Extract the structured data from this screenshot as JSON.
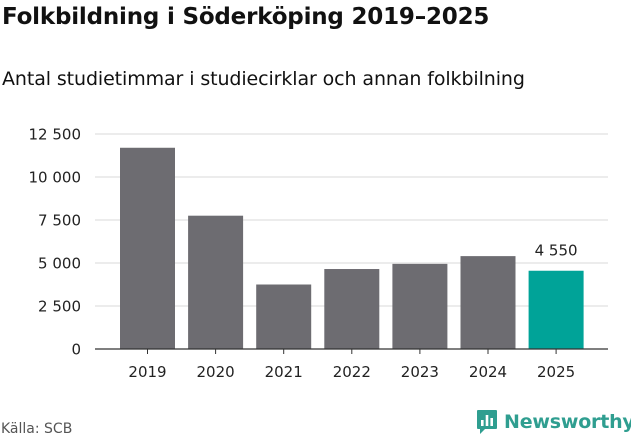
{
  "header": {
    "title": "Folkbildning i Söderköping 2019–2025",
    "subtitle": "Antal studietimmar i studiecirklar och annan folkbilning"
  },
  "footer": {
    "source": "Källa: SCB",
    "brand": "Newsworthy"
  },
  "colors": {
    "bar": "#6d6c71",
    "highlight": "#00a398",
    "grid": "#d9d9d9",
    "axis": "#333333",
    "text": "#222222",
    "brand": "#2f9e90"
  },
  "chart_data": {
    "type": "bar",
    "title": "Folkbildning i Söderköping 2019–2025",
    "subtitle": "Antal studietimmar i studiecirklar och annan folkbilning",
    "xlabel": "",
    "ylabel": "",
    "categories": [
      "2019",
      "2020",
      "2021",
      "2022",
      "2023",
      "2024",
      "2025"
    ],
    "values": [
      11700,
      7750,
      3750,
      4650,
      4950,
      5400,
      4550
    ],
    "highlight_index": 6,
    "data_labels": [
      {
        "index": 6,
        "text": "4 550"
      }
    ],
    "yticks": [
      0,
      2500,
      5000,
      7500,
      10000,
      12500
    ],
    "ytick_labels": [
      "0",
      "2 500",
      "5 000",
      "7 500",
      "10 000",
      "12 500"
    ],
    "ylim": [
      0,
      12500
    ],
    "grid": true,
    "legend": "none"
  }
}
